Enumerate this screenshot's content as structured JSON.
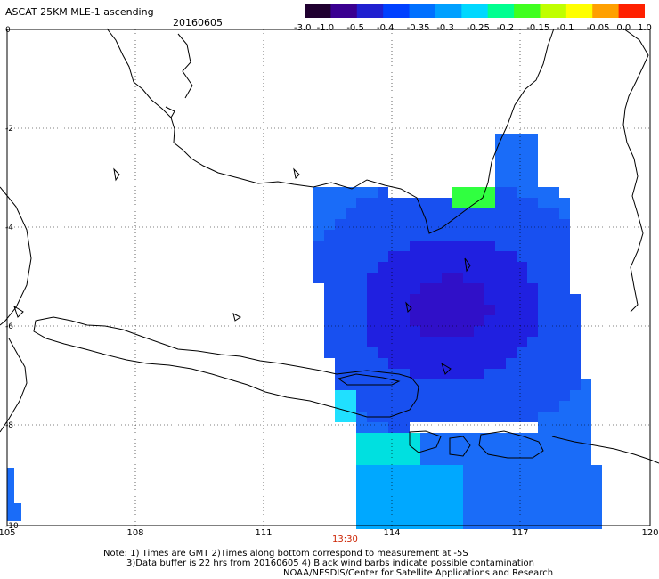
{
  "header": {
    "title": "ASCAT 25KM MLE-1 ascending",
    "date": "20160605"
  },
  "colorbar": {
    "labels": [
      "-3.0",
      "-1.0",
      "-0.5",
      "-0.4",
      "-0.35",
      "-0.3",
      "-0.25",
      "-0.2",
      "-0.15",
      "-0.1",
      "-0.05",
      "0.0",
      "1.0"
    ],
    "colors": [
      "#200030",
      "#3a0090",
      "#2020d0",
      "#0040ff",
      "#0070ff",
      "#00a0ff",
      "#00d8ff",
      "#00ff90",
      "#40ff20",
      "#c0ff00",
      "#ffff00",
      "#ffa000",
      "#ff2000"
    ]
  },
  "axes": {
    "x_labels": [
      "105",
      "108",
      "111",
      "114",
      "117",
      "120"
    ],
    "y_labels": [
      "0",
      "-2",
      "-4",
      "-6",
      "-8",
      "-10"
    ]
  },
  "pass_time": "13:30",
  "footer": {
    "line1": "Note: 1) Times are GMT 2)Times along bottom correspond to measurement at -5S",
    "line2": "3)Data buffer is 22 hrs from 20160605 4) Black wind barbs indicate possible contamination",
    "line3": "NOAA/NESDIS/Center for Satellite Applications and Research"
  }
}
